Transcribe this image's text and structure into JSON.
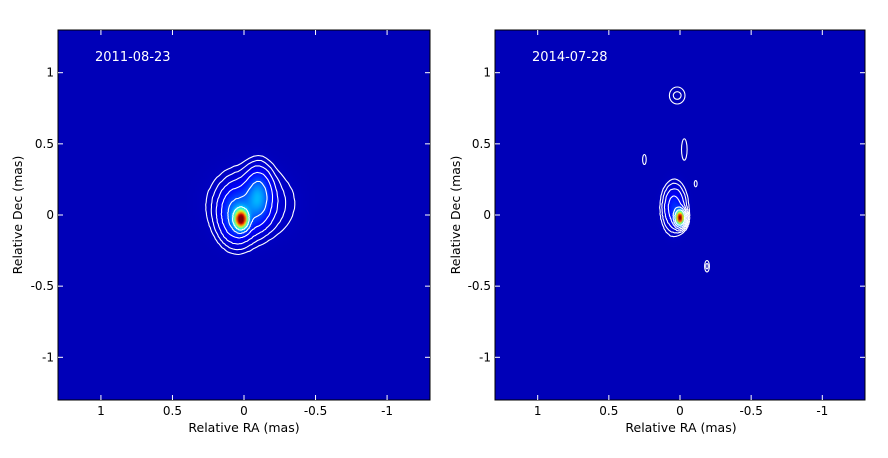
{
  "chart_data": [
    {
      "type": "heatmap",
      "annotation": "2011-08-23",
      "xlabel": "Relative RA  (mas)",
      "ylabel": "Relative Dec  (mas)",
      "xlim": [
        1.3,
        -1.3
      ],
      "ylim": [
        -1.3,
        1.3
      ],
      "xticks": [
        1,
        0.5,
        0,
        -0.5,
        -1
      ],
      "xtick_labels": [
        "1",
        "0.5",
        "0",
        "-0.5",
        "-1"
      ],
      "yticks": [
        1,
        0.5,
        0,
        -0.5,
        -1
      ],
      "ytick_labels": [
        "1",
        "0.5",
        "0",
        "-0.5",
        "-1"
      ],
      "colormap": "jet",
      "background_color": "#00008f",
      "contour_color": "#ffffff",
      "peak": {
        "ra": 0.02,
        "dec": -0.03
      },
      "components": [
        {
          "ra": 0.02,
          "dec": -0.03,
          "amp": 1.0,
          "sx": 0.028,
          "sy": 0.04
        },
        {
          "ra": 0.05,
          "dec": 0.0,
          "amp": 0.18,
          "sx": 0.07,
          "sy": 0.11
        },
        {
          "ra": -0.1,
          "dec": 0.13,
          "amp": 0.2,
          "sx": 0.055,
          "sy": 0.11
        },
        {
          "ra": -0.05,
          "dec": 0.08,
          "amp": 0.06,
          "sx": 0.16,
          "sy": 0.14
        }
      ],
      "contour_levels": [
        0.01,
        0.02,
        0.04,
        0.08,
        0.16,
        0.32
      ]
    },
    {
      "type": "heatmap",
      "annotation": "2014-07-28",
      "xlabel": "Relative RA  (mas)",
      "ylabel": "Relative Dec  (mas)",
      "xlim": [
        1.3,
        -1.3
      ],
      "ylim": [
        -1.3,
        1.3
      ],
      "xticks": [
        1,
        0.5,
        0,
        -0.5,
        -1
      ],
      "xtick_labels": [
        "1",
        "0.5",
        "0",
        "-0.5",
        "-1"
      ],
      "yticks": [
        1,
        0.5,
        0,
        -0.5,
        -1
      ],
      "ytick_labels": [
        "1",
        "0.5",
        "0",
        "-0.5",
        "-1"
      ],
      "colormap": "jet",
      "background_color": "#00008f",
      "contour_color": "#ffffff",
      "peak": {
        "ra": 0.0,
        "dec": -0.02
      },
      "components": [
        {
          "ra": 0.0,
          "dec": -0.02,
          "amp": 1.0,
          "sx": 0.02,
          "sy": 0.032
        },
        {
          "ra": 0.04,
          "dec": 0.05,
          "amp": 0.12,
          "sx": 0.045,
          "sy": 0.09
        }
      ],
      "contour_levels": [
        0.01,
        0.02,
        0.04,
        0.08,
        0.16,
        0.32
      ],
      "isolated_contours": [
        {
          "ra": 0.02,
          "dec": 0.84,
          "rx": 0.055,
          "ry": 0.06,
          "ring": true
        },
        {
          "ra": -0.03,
          "dec": 0.46,
          "rx": 0.02,
          "ry": 0.075,
          "ring": false
        },
        {
          "ra": 0.25,
          "dec": 0.39,
          "rx": 0.013,
          "ry": 0.035,
          "ring": false
        },
        {
          "ra": -0.11,
          "dec": 0.22,
          "rx": 0.01,
          "ry": 0.022,
          "ring": false
        },
        {
          "ra": -0.19,
          "dec": -0.36,
          "rx": 0.017,
          "ry": 0.04,
          "ring": true
        }
      ]
    }
  ]
}
